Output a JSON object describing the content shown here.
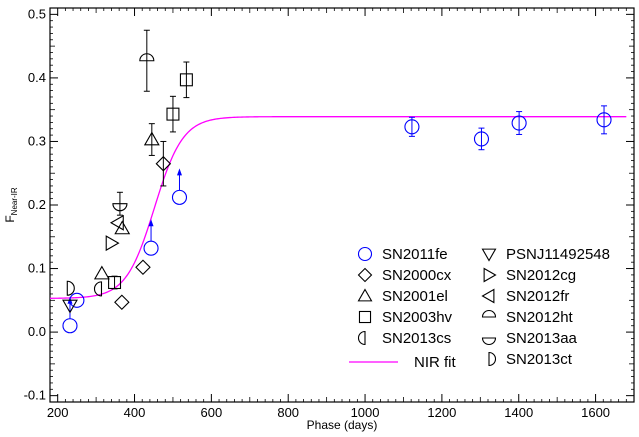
{
  "chart_data": {
    "type": "scatter",
    "xlabel": "Phase (days)",
    "ylabel_main": "F",
    "ylabel_sub": "Near-IR",
    "xlim": [
      180,
      1700
    ],
    "ylim": [
      -0.11,
      0.51
    ],
    "xticks": [
      200,
      400,
      600,
      800,
      1000,
      1200,
      1400,
      1600
    ],
    "yticks": [
      -0.1,
      0.0,
      0.1,
      0.2,
      0.3,
      0.4,
      0.5
    ],
    "ytick_labels": [
      "-0.1",
      "0.0",
      "0.1",
      "0.2",
      "0.3",
      "0.4",
      "0.5"
    ],
    "grid": false,
    "legend_position": "lower-right",
    "fit_color": "#ff00ff",
    "blue_color": "#0000ff",
    "series": [
      {
        "name": "SN2011fe",
        "marker": "circle",
        "color": "#0000ff",
        "points": [
          {
            "x": 232,
            "y": 0.01,
            "arrow": true
          },
          {
            "x": 250,
            "y": 0.05
          },
          {
            "x": 443,
            "y": 0.132,
            "arrow": true
          },
          {
            "x": 517,
            "y": 0.212,
            "arrow": true
          },
          {
            "x": 1122,
            "y": 0.323,
            "err": 0.015
          },
          {
            "x": 1303,
            "y": 0.304,
            "err": 0.017
          },
          {
            "x": 1401,
            "y": 0.329,
            "err": 0.018
          },
          {
            "x": 1622,
            "y": 0.334,
            "err": 0.022
          }
        ]
      },
      {
        "name": "SN2000cx",
        "marker": "diamond",
        "color": "#000000",
        "points": [
          {
            "x": 367,
            "y": 0.047
          },
          {
            "x": 422,
            "y": 0.102
          },
          {
            "x": 475,
            "y": 0.265,
            "err": 0.035
          }
        ]
      },
      {
        "name": "SN2001el",
        "marker": "triangle-up",
        "color": "#000000",
        "points": [
          {
            "x": 315,
            "y": 0.092
          },
          {
            "x": 368,
            "y": 0.163
          },
          {
            "x": 445,
            "y": 0.303,
            "err": 0.025
          }
        ]
      },
      {
        "name": "SN2003hv",
        "marker": "square",
        "color": "#000000",
        "points": [
          {
            "x": 348,
            "y": 0.078,
            "err": 0.01
          },
          {
            "x": 500,
            "y": 0.343,
            "err": 0.028
          },
          {
            "x": 535,
            "y": 0.397,
            "err": 0.028
          }
        ]
      },
      {
        "name": "SN2013cs",
        "marker": "half-left",
        "color": "#000000",
        "points": [
          {
            "x": 314,
            "y": 0.068
          }
        ]
      },
      {
        "name": "PSNJ11492548",
        "marker": "triangle-down",
        "color": "#000000",
        "points": [
          {
            "x": 232,
            "y": 0.042
          }
        ]
      },
      {
        "name": "SN2012cg",
        "marker": "triangle-right",
        "color": "#000000",
        "points": [
          {
            "x": 340,
            "y": 0.14
          }
        ]
      },
      {
        "name": "SN2012fr",
        "marker": "triangle-left",
        "color": "#000000",
        "points": [
          {
            "x": 357,
            "y": 0.172
          }
        ]
      },
      {
        "name": "SN2012ht",
        "marker": "half-top",
        "color": "#000000",
        "points": [
          {
            "x": 432,
            "y": 0.427,
            "err": 0.048
          }
        ]
      },
      {
        "name": "SN2013aa",
        "marker": "half-bottom",
        "color": "#000000",
        "points": [
          {
            "x": 362,
            "y": 0.202,
            "err": 0.018
          }
        ]
      },
      {
        "name": "SN2013ct",
        "marker": "half-right",
        "color": "#000000",
        "points": [
          {
            "x": 225,
            "y": 0.069
          }
        ]
      }
    ],
    "fit": {
      "name": "NIR fit",
      "low": 0.053,
      "high": 0.339,
      "center": 452,
      "scale": 37
    }
  }
}
